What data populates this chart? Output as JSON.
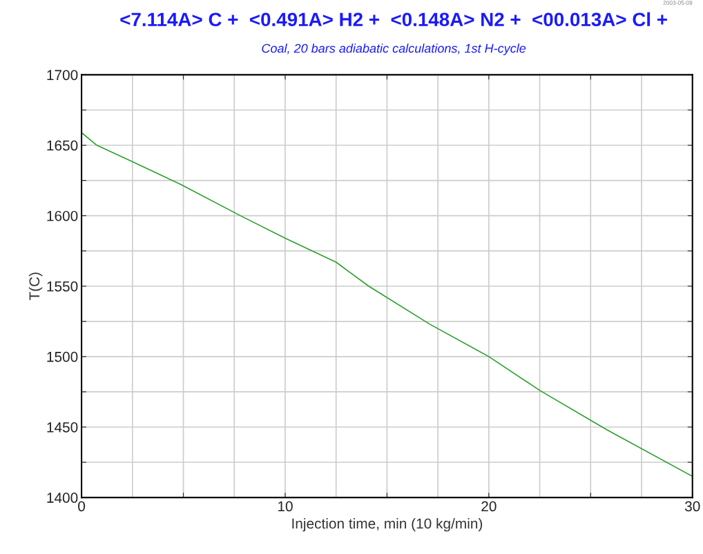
{
  "chart_data": {
    "type": "line",
    "title": "<7.114A> C +  <0.491A> H2 +  <0.148A> N2 +  <00.013A> Cl +",
    "subtitle": "Coal, 20 bars adiabatic calculations, 1st H-cycle",
    "xlabel": "Injection time, min (10 kg/min)",
    "ylabel": "T(C)",
    "annotations": [
      "2003-05-09"
    ],
    "series": [
      {
        "color": "#2ca02c",
        "x": [
          0,
          0.75,
          2.4,
          4.9,
          7.8,
          10,
          12.5,
          14.1,
          17.1,
          20,
          22.5,
          25.8,
          30
        ],
        "values": [
          1659,
          1650,
          1639,
          1622,
          1600,
          1584,
          1567,
          1550,
          1523,
          1500,
          1476,
          1448,
          1415
        ]
      }
    ],
    "xlim": [
      0,
      30
    ],
    "ylim": [
      1400,
      1700
    ],
    "xticks": [
      0,
      {
        "value": 5,
        "label": null
      },
      10,
      {
        "value": 15,
        "label": null
      },
      20,
      {
        "value": 25,
        "label": null
      },
      30
    ],
    "yticks": [
      1400,
      {
        "value": 1425,
        "label": null
      },
      1450,
      {
        "value": 1475,
        "label": null
      },
      1500,
      {
        "value": 1525,
        "label": null
      },
      1550,
      {
        "value": 1575,
        "label": null
      },
      1600,
      {
        "value": 1625,
        "label": null
      },
      1650,
      {
        "value": 1675,
        "label": null
      },
      1700
    ],
    "grid": true,
    "marker": "none",
    "line_style": "solid"
  }
}
